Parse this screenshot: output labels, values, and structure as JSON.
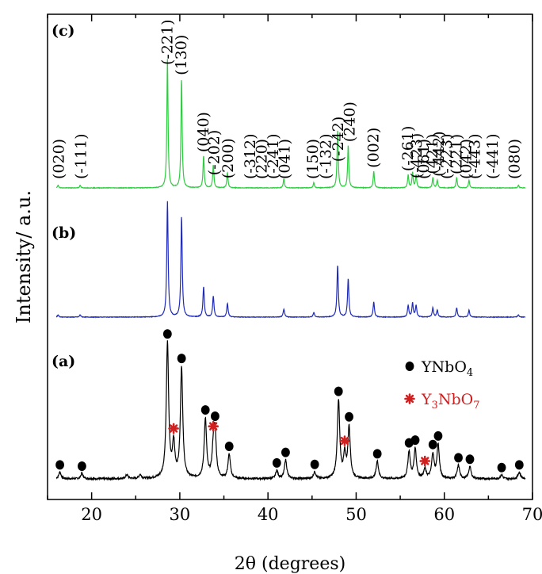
{
  "chart_data": {
    "type": "line",
    "xlabel": "2θ (degrees)",
    "ylabel": "Intensity/ a.u.",
    "xlim": [
      15,
      70
    ],
    "x_ticks": [
      20,
      30,
      40,
      50,
      60,
      70
    ],
    "grid": false,
    "colors": {
      "a": "#000000",
      "b": "#1f2bb8",
      "c": "#2ecc40",
      "star": "#d02020"
    },
    "series": [
      {
        "name": "(a)",
        "peaks": [
          {
            "x": 16.4,
            "h": 0.05
          },
          {
            "x": 18.9,
            "h": 0.04
          },
          {
            "x": 24.0,
            "h": 0.03
          },
          {
            "x": 25.5,
            "h": 0.03
          },
          {
            "x": 28.6,
            "h": 1.0
          },
          {
            "x": 29.3,
            "h": 0.25
          },
          {
            "x": 30.2,
            "h": 0.82
          },
          {
            "x": 32.9,
            "h": 0.44
          },
          {
            "x": 33.8,
            "h": 0.2
          },
          {
            "x": 34.0,
            "h": 0.32
          },
          {
            "x": 35.6,
            "h": 0.18
          },
          {
            "x": 41.0,
            "h": 0.06
          },
          {
            "x": 42.0,
            "h": 0.14
          },
          {
            "x": 45.3,
            "h": 0.05
          },
          {
            "x": 48.0,
            "h": 0.58
          },
          {
            "x": 48.7,
            "h": 0.17
          },
          {
            "x": 49.2,
            "h": 0.38
          },
          {
            "x": 52.4,
            "h": 0.13
          },
          {
            "x": 56.0,
            "h": 0.2
          },
          {
            "x": 56.7,
            "h": 0.22
          },
          {
            "x": 57.8,
            "h": 0.07
          },
          {
            "x": 58.7,
            "h": 0.18
          },
          {
            "x": 59.3,
            "h": 0.25
          },
          {
            "x": 61.6,
            "h": 0.1
          },
          {
            "x": 62.9,
            "h": 0.09
          },
          {
            "x": 66.5,
            "h": 0.03
          },
          {
            "x": 68.5,
            "h": 0.05
          }
        ]
      },
      {
        "name": "(b)",
        "peaks": [
          {
            "x": 16.2,
            "h": 0.02
          },
          {
            "x": 18.7,
            "h": 0.02
          },
          {
            "x": 28.6,
            "h": 1.0
          },
          {
            "x": 30.2,
            "h": 0.87
          },
          {
            "x": 32.7,
            "h": 0.26
          },
          {
            "x": 33.8,
            "h": 0.18
          },
          {
            "x": 35.4,
            "h": 0.12
          },
          {
            "x": 41.8,
            "h": 0.07
          },
          {
            "x": 45.2,
            "h": 0.04
          },
          {
            "x": 47.9,
            "h": 0.45
          },
          {
            "x": 49.1,
            "h": 0.33
          },
          {
            "x": 52.0,
            "h": 0.13
          },
          {
            "x": 55.9,
            "h": 0.1
          },
          {
            "x": 56.4,
            "h": 0.12
          },
          {
            "x": 56.8,
            "h": 0.1
          },
          {
            "x": 58.7,
            "h": 0.08
          },
          {
            "x": 59.2,
            "h": 0.06
          },
          {
            "x": 61.4,
            "h": 0.08
          },
          {
            "x": 62.8,
            "h": 0.06
          },
          {
            "x": 68.4,
            "h": 0.02
          }
        ]
      },
      {
        "name": "(c)",
        "peaks": [
          {
            "x": 16.2,
            "h": 0.02
          },
          {
            "x": 18.7,
            "h": 0.02
          },
          {
            "x": 28.6,
            "h": 1.0
          },
          {
            "x": 30.2,
            "h": 0.85
          },
          {
            "x": 32.7,
            "h": 0.25
          },
          {
            "x": 33.8,
            "h": 0.18
          },
          {
            "x": 35.4,
            "h": 0.12
          },
          {
            "x": 41.8,
            "h": 0.07
          },
          {
            "x": 45.2,
            "h": 0.04
          },
          {
            "x": 47.9,
            "h": 0.45
          },
          {
            "x": 49.1,
            "h": 0.33
          },
          {
            "x": 52.0,
            "h": 0.13
          },
          {
            "x": 55.9,
            "h": 0.1
          },
          {
            "x": 56.4,
            "h": 0.12
          },
          {
            "x": 56.8,
            "h": 0.1
          },
          {
            "x": 58.7,
            "h": 0.08
          },
          {
            "x": 59.2,
            "h": 0.06
          },
          {
            "x": 61.4,
            "h": 0.08
          },
          {
            "x": 62.8,
            "h": 0.06
          },
          {
            "x": 68.4,
            "h": 0.02
          }
        ]
      }
    ],
    "miller_indices_c": [
      {
        "label": "(020)",
        "x": 16.3
      },
      {
        "label": "(-111)",
        "x": 18.8
      },
      {
        "label": "(-221)",
        "x": 28.6
      },
      {
        "label": "(130)",
        "x": 30.2
      },
      {
        "label": "(040)",
        "x": 32.7
      },
      {
        "label": "(-202)",
        "x": 33.9
      },
      {
        "label": "(200)",
        "x": 35.5
      },
      {
        "label": "(-312)",
        "x": 38.0
      },
      {
        "label": "(220)",
        "x": 39.3
      },
      {
        "label": "(-241)",
        "x": 40.6
      },
      {
        "label": "(041)",
        "x": 41.9
      },
      {
        "label": "(150)",
        "x": 45.1
      },
      {
        "label": "(-132)",
        "x": 46.6
      },
      {
        "label": "(-242)",
        "x": 48.0
      },
      {
        "label": "(240)",
        "x": 49.3
      },
      {
        "label": "(002)",
        "x": 52.0
      },
      {
        "label": "(-261)",
        "x": 55.9
      },
      {
        "label": "(-423)",
        "x": 56.9
      },
      {
        "label": "(061)",
        "x": 57.7
      },
      {
        "label": "(421)",
        "x": 58.7
      },
      {
        "label": "(-442)",
        "x": 59.4
      },
      {
        "label": "(-223)",
        "x": 60.3
      },
      {
        "label": "(221)",
        "x": 61.4
      },
      {
        "label": "(042)",
        "x": 62.5
      },
      {
        "label": "(-443)",
        "x": 63.5
      },
      {
        "label": "(-441)",
        "x": 65.5
      },
      {
        "label": "(080)",
        "x": 68.0
      }
    ],
    "markers_a": {
      "YNbO4": [
        16.4,
        18.9,
        28.6,
        30.2,
        32.9,
        34.0,
        35.6,
        41.0,
        42.0,
        45.3,
        48.0,
        49.2,
        52.4,
        56.0,
        56.7,
        58.7,
        59.3,
        61.6,
        62.9,
        66.5,
        68.5
      ],
      "Y3NbO7": [
        29.3,
        33.8,
        48.7,
        57.8
      ]
    },
    "legend": [
      {
        "marker": "circle",
        "text": "YNbO",
        "sub": "4",
        "color": "#000000"
      },
      {
        "marker": "star",
        "text_parts": [
          "Y",
          "3",
          "NbO",
          "7"
        ],
        "color": "#d02020"
      }
    ],
    "panel_labels": [
      "(a)",
      "(b)",
      "(c)"
    ]
  }
}
